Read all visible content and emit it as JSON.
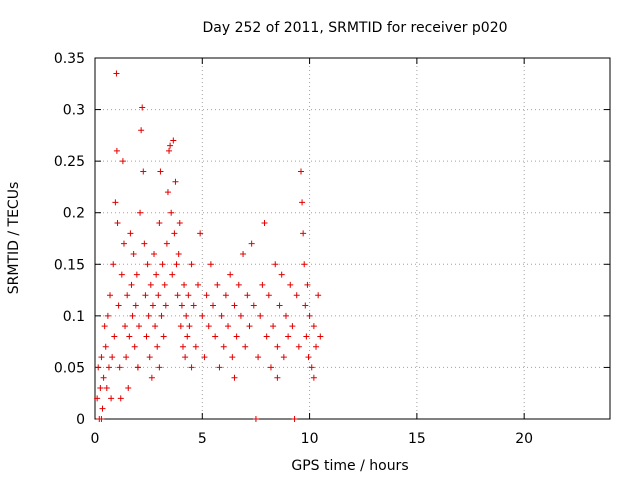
{
  "chart_data": {
    "type": "scatter",
    "title": "Day 252 of 2011, SRMTID for receiver p020",
    "xlabel": "GPS time / hours",
    "ylabel": "SRMTID / TECUs",
    "xlim": [
      0,
      24
    ],
    "ylim": [
      0,
      0.35
    ],
    "xticks": [
      0,
      5,
      10,
      15,
      20
    ],
    "xtick_labels": [
      "0",
      "5",
      "10",
      "15",
      "20"
    ],
    "yticks": [
      0,
      0.05,
      0.1,
      0.15,
      0.2,
      0.25,
      0.3,
      0.35
    ],
    "ytick_labels": [
      "0",
      "0.05",
      "0.1",
      "0.15",
      "0.2",
      "0.25",
      "0.3",
      "0.35"
    ],
    "grid": true,
    "marker": "+",
    "color": "#e00000",
    "series": [
      {
        "name": "p020",
        "points": [
          [
            0.1,
            0.02
          ],
          [
            0.15,
            0.05
          ],
          [
            0.2,
            0.0
          ],
          [
            0.25,
            0.03
          ],
          [
            0.3,
            0.06
          ],
          [
            0.35,
            0.01
          ],
          [
            0.4,
            0.04
          ],
          [
            0.45,
            0.09
          ],
          [
            0.5,
            0.07
          ],
          [
            0.55,
            0.03
          ],
          [
            0.6,
            0.1
          ],
          [
            0.65,
            0.05
          ],
          [
            0.7,
            0.12
          ],
          [
            0.75,
            0.02
          ],
          [
            0.8,
            0.06
          ],
          [
            0.85,
            0.15
          ],
          [
            0.9,
            0.08
          ],
          [
            0.95,
            0.21
          ],
          [
            1.0,
            0.335
          ],
          [
            1.02,
            0.26
          ],
          [
            1.05,
            0.19
          ],
          [
            1.1,
            0.11
          ],
          [
            1.15,
            0.05
          ],
          [
            1.2,
            0.02
          ],
          [
            1.25,
            0.14
          ],
          [
            1.3,
            0.25
          ],
          [
            1.35,
            0.17
          ],
          [
            1.4,
            0.09
          ],
          [
            1.45,
            0.06
          ],
          [
            1.5,
            0.12
          ],
          [
            1.55,
            0.03
          ],
          [
            1.6,
            0.08
          ],
          [
            1.65,
            0.18
          ],
          [
            1.7,
            0.13
          ],
          [
            1.75,
            0.1
          ],
          [
            1.8,
            0.16
          ],
          [
            1.85,
            0.07
          ],
          [
            1.9,
            0.11
          ],
          [
            1.95,
            0.14
          ],
          [
            2.0,
            0.05
          ],
          [
            2.05,
            0.09
          ],
          [
            2.1,
            0.2
          ],
          [
            2.15,
            0.28
          ],
          [
            2.2,
            0.302
          ],
          [
            2.25,
            0.24
          ],
          [
            2.3,
            0.17
          ],
          [
            2.35,
            0.12
          ],
          [
            2.4,
            0.08
          ],
          [
            2.45,
            0.15
          ],
          [
            2.5,
            0.1
          ],
          [
            2.55,
            0.06
          ],
          [
            2.6,
            0.13
          ],
          [
            2.65,
            0.04
          ],
          [
            2.7,
            0.11
          ],
          [
            2.75,
            0.16
          ],
          [
            2.8,
            0.09
          ],
          [
            2.85,
            0.14
          ],
          [
            2.9,
            0.07
          ],
          [
            2.95,
            0.12
          ],
          [
            3.0,
            0.19
          ],
          [
            3.05,
            0.24
          ],
          [
            3.1,
            0.1
          ],
          [
            3.15,
            0.15
          ],
          [
            3.2,
            0.08
          ],
          [
            3.25,
            0.13
          ],
          [
            3.3,
            0.11
          ],
          [
            3.35,
            0.17
          ],
          [
            3.4,
            0.22
          ],
          [
            3.45,
            0.26
          ],
          [
            3.5,
            0.265
          ],
          [
            3.55,
            0.2
          ],
          [
            3.6,
            0.14
          ],
          [
            3.65,
            0.27
          ],
          [
            3.7,
            0.18
          ],
          [
            3.75,
            0.23
          ],
          [
            3.8,
            0.15
          ],
          [
            3.85,
            0.12
          ],
          [
            3.9,
            0.16
          ],
          [
            3.95,
            0.19
          ],
          [
            4.0,
            0.09
          ],
          [
            4.05,
            0.11
          ],
          [
            4.1,
            0.07
          ],
          [
            4.15,
            0.13
          ],
          [
            4.2,
            0.06
          ],
          [
            4.25,
            0.1
          ],
          [
            4.3,
            0.08
          ],
          [
            4.35,
            0.12
          ],
          [
            4.4,
            0.09
          ],
          [
            4.5,
            0.15
          ],
          [
            4.6,
            0.11
          ],
          [
            4.7,
            0.07
          ],
          [
            4.8,
            0.13
          ],
          [
            4.9,
            0.18
          ],
          [
            5.0,
            0.1
          ],
          [
            5.1,
            0.06
          ],
          [
            5.2,
            0.12
          ],
          [
            5.3,
            0.09
          ],
          [
            5.4,
            0.15
          ],
          [
            5.5,
            0.11
          ],
          [
            5.6,
            0.08
          ],
          [
            5.7,
            0.13
          ],
          [
            5.8,
            0.05
          ],
          [
            5.9,
            0.1
          ],
          [
            6.0,
            0.07
          ],
          [
            6.1,
            0.12
          ],
          [
            6.2,
            0.09
          ],
          [
            6.3,
            0.14
          ],
          [
            6.4,
            0.06
          ],
          [
            6.5,
            0.11
          ],
          [
            6.6,
            0.08
          ],
          [
            6.7,
            0.13
          ],
          [
            6.8,
            0.1
          ],
          [
            6.9,
            0.16
          ],
          [
            7.0,
            0.07
          ],
          [
            7.1,
            0.12
          ],
          [
            7.2,
            0.09
          ],
          [
            7.3,
            0.17
          ],
          [
            7.4,
            0.11
          ],
          [
            7.5,
            0.0
          ],
          [
            7.6,
            0.06
          ],
          [
            7.7,
            0.1
          ],
          [
            7.8,
            0.13
          ],
          [
            7.9,
            0.19
          ],
          [
            8.0,
            0.08
          ],
          [
            8.1,
            0.12
          ],
          [
            8.2,
            0.05
          ],
          [
            8.3,
            0.09
          ],
          [
            8.4,
            0.15
          ],
          [
            8.5,
            0.07
          ],
          [
            8.6,
            0.11
          ],
          [
            8.7,
            0.14
          ],
          [
            8.8,
            0.06
          ],
          [
            8.9,
            0.1
          ],
          [
            9.0,
            0.08
          ],
          [
            9.1,
            0.13
          ],
          [
            9.2,
            0.09
          ],
          [
            9.3,
            0.0
          ],
          [
            9.4,
            0.12
          ],
          [
            9.5,
            0.07
          ],
          [
            9.6,
            0.24
          ],
          [
            9.65,
            0.21
          ],
          [
            9.7,
            0.18
          ],
          [
            9.75,
            0.15
          ],
          [
            9.8,
            0.11
          ],
          [
            9.85,
            0.08
          ],
          [
            9.9,
            0.13
          ],
          [
            9.95,
            0.06
          ],
          [
            10.0,
            0.1
          ],
          [
            10.1,
            0.05
          ],
          [
            10.2,
            0.09
          ],
          [
            10.3,
            0.07
          ],
          [
            10.4,
            0.12
          ],
          [
            10.5,
            0.08
          ],
          [
            0.3,
            0.0
          ],
          [
            2.0,
            0.05
          ],
          [
            3.0,
            0.05
          ],
          [
            4.5,
            0.05
          ],
          [
            6.5,
            0.04
          ],
          [
            8.5,
            0.04
          ],
          [
            10.2,
            0.04
          ]
        ]
      }
    ]
  }
}
